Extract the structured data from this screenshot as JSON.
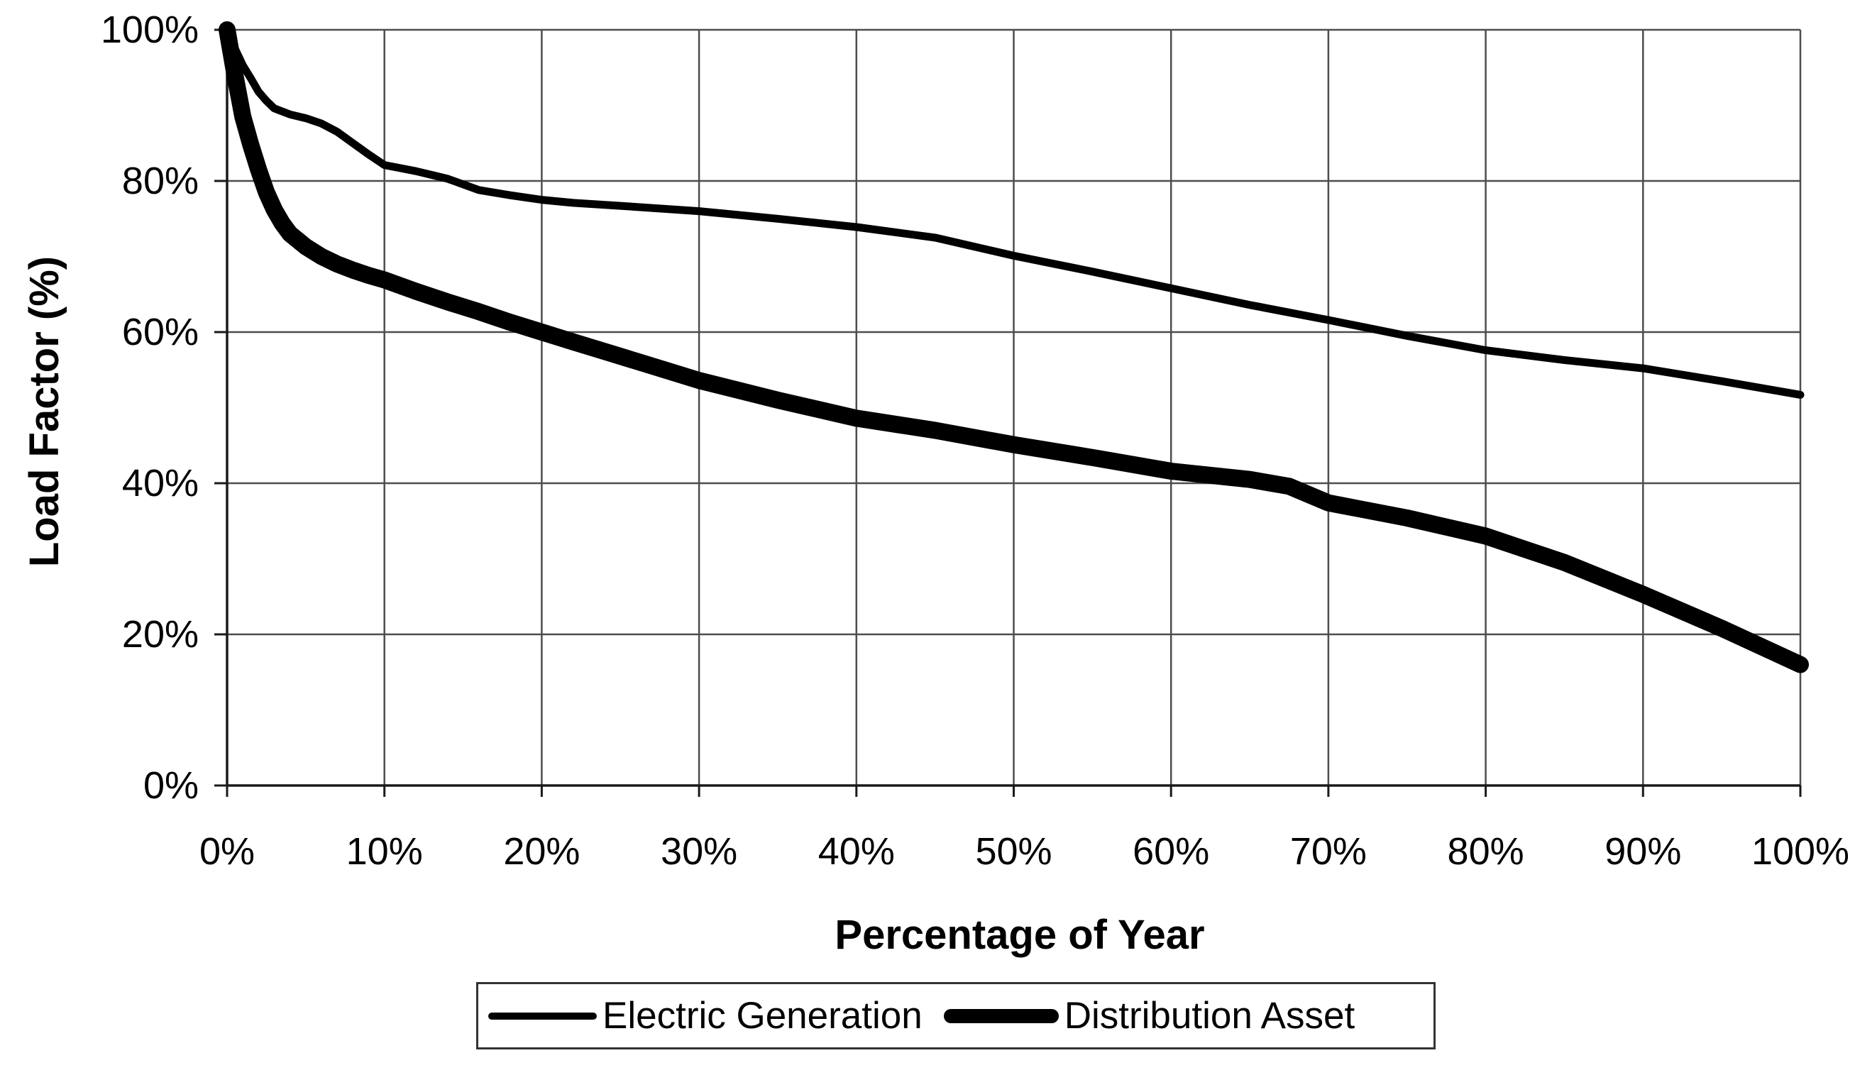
{
  "figure": {
    "background": "#ffffff",
    "text_color": "#000000",
    "grid_color": "#4d4d4d",
    "axis_color": "#1a1a1a",
    "series_color": "#000000"
  },
  "chart_data": {
    "type": "line",
    "title": "",
    "xlabel": "Percentage of Year",
    "ylabel": "Load Factor (%)",
    "xlim": [
      0,
      100
    ],
    "ylim": [
      0,
      100
    ],
    "grid": true,
    "legend_position": "bottom",
    "x_tick_labels": [
      "0%",
      "10%",
      "20%",
      "30%",
      "40%",
      "50%",
      "60%",
      "70%",
      "80%",
      "90%",
      "100%"
    ],
    "x_tick_values": [
      0,
      10,
      20,
      30,
      40,
      50,
      60,
      70,
      80,
      90,
      100
    ],
    "y_tick_labels": [
      "0%",
      "20%",
      "40%",
      "60%",
      "80%",
      "100%"
    ],
    "y_tick_values": [
      0,
      20,
      40,
      60,
      80,
      100
    ],
    "series": [
      {
        "name": "Electric Generation",
        "style": "thin",
        "stroke_px": 11,
        "points": [
          [
            0,
            100
          ],
          [
            0.5,
            97.5
          ],
          [
            1,
            95.3
          ],
          [
            1.5,
            93.6
          ],
          [
            2,
            91.8
          ],
          [
            2.5,
            90.6
          ],
          [
            3,
            89.6
          ],
          [
            4,
            88.8
          ],
          [
            5,
            88.3
          ],
          [
            6,
            87.6
          ],
          [
            7,
            86.5
          ],
          [
            8,
            85.0
          ],
          [
            9,
            83.5
          ],
          [
            10,
            82.1
          ],
          [
            11,
            81.7
          ],
          [
            12,
            81.3
          ],
          [
            13,
            80.8
          ],
          [
            14,
            80.3
          ],
          [
            16,
            78.8
          ],
          [
            18,
            78.1
          ],
          [
            20,
            77.5
          ],
          [
            22,
            77.1
          ],
          [
            25,
            76.7
          ],
          [
            30,
            76.0
          ],
          [
            35,
            75.0
          ],
          [
            40,
            73.9
          ],
          [
            45,
            72.5
          ],
          [
            50,
            70.1
          ],
          [
            55,
            68.0
          ],
          [
            60,
            65.8
          ],
          [
            65,
            63.6
          ],
          [
            70,
            61.6
          ],
          [
            75,
            59.5
          ],
          [
            80,
            57.6
          ],
          [
            85,
            56.3
          ],
          [
            90,
            55.2
          ],
          [
            95,
            53.5
          ],
          [
            100,
            51.7
          ]
        ]
      },
      {
        "name": "Distribution Asset",
        "style": "thick",
        "stroke_px": 24,
        "points": [
          [
            0,
            100
          ],
          [
            0.5,
            94.0
          ],
          [
            1,
            88.5
          ],
          [
            1.5,
            84.8
          ],
          [
            2,
            81.5
          ],
          [
            2.5,
            78.5
          ],
          [
            3,
            76.2
          ],
          [
            3.5,
            74.4
          ],
          [
            4,
            73.0
          ],
          [
            5,
            71.3
          ],
          [
            6,
            70.0
          ],
          [
            7,
            69.0
          ],
          [
            8,
            68.2
          ],
          [
            9,
            67.5
          ],
          [
            10,
            66.9
          ],
          [
            12,
            65.4
          ],
          [
            14,
            64.0
          ],
          [
            16,
            62.7
          ],
          [
            18,
            61.3
          ],
          [
            20,
            60.0
          ],
          [
            22,
            58.7
          ],
          [
            25,
            56.8
          ],
          [
            30,
            53.6
          ],
          [
            35,
            51.0
          ],
          [
            40,
            48.6
          ],
          [
            45,
            47.0
          ],
          [
            50,
            45.1
          ],
          [
            55,
            43.4
          ],
          [
            60,
            41.6
          ],
          [
            65,
            40.5
          ],
          [
            67.5,
            39.6
          ],
          [
            70,
            37.4
          ],
          [
            75,
            35.4
          ],
          [
            80,
            33.0
          ],
          [
            85,
            29.5
          ],
          [
            90,
            25.3
          ],
          [
            95,
            20.8
          ],
          [
            100,
            16.0
          ]
        ]
      }
    ]
  }
}
